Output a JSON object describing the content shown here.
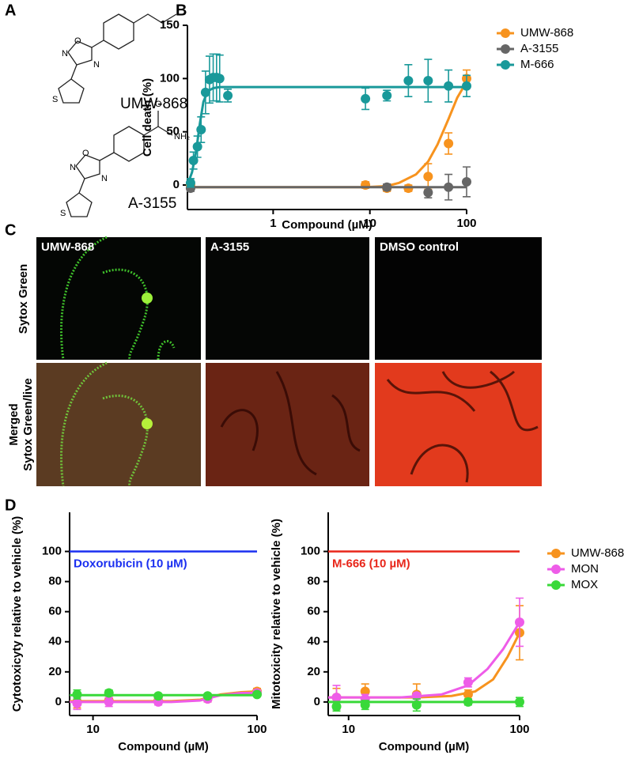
{
  "panels": [
    "A",
    "B",
    "C",
    "D"
  ],
  "structures": [
    {
      "name": "UMW-868",
      "atoms": [
        "O",
        "N",
        "N",
        "S"
      ]
    },
    {
      "name": "A-3155",
      "atoms": [
        "O",
        "N",
        "N",
        "S",
        "O",
        "NH₂"
      ]
    }
  ],
  "images": {
    "columns": [
      "UMW-868",
      "A-3155",
      "DMSO control"
    ],
    "rows": [
      {
        "lines": [
          "Sytox Green"
        ]
      },
      {
        "lines": [
          "Merged",
          "Sytox Green/live"
        ]
      }
    ]
  },
  "chart_data": [
    {
      "type": "scatter",
      "x_label": "Compound (µM)",
      "y_label": "Cell death (%)",
      "xscale": "log",
      "xlim": [
        0.13,
        100
      ],
      "ylim": [
        -23,
        150
      ],
      "xticks": [
        1,
        10,
        100
      ],
      "yticks": [
        0,
        50,
        100,
        150
      ],
      "legend": "right",
      "series": [
        {
          "name": "UMW-868",
          "color": "#f7931e",
          "x": [
            0.14,
            9,
            15,
            25,
            40,
            65,
            100
          ],
          "values": [
            0,
            0,
            -3,
            -3,
            8,
            39,
            100
          ],
          "errors": [
            3,
            3,
            3,
            3,
            12,
            10,
            8
          ],
          "fit_x": [
            0.13,
            0.34,
            9,
            15,
            20,
            30,
            40,
            50,
            65,
            80,
            100
          ],
          "fit_y": [
            -2,
            -2,
            -2,
            -1,
            2,
            10,
            22,
            38,
            62,
            82,
            97
          ]
        },
        {
          "name": "A-3155",
          "color": "#666666",
          "x": [
            0.14,
            15,
            40,
            65,
            100
          ],
          "values": [
            -3,
            -2,
            -7,
            -2,
            3
          ],
          "errors": [
            3,
            3,
            5,
            12,
            14
          ],
          "fit_x": [
            0.13,
            0.34,
            9,
            100
          ],
          "fit_y": [
            -2,
            -2,
            -2,
            -2
          ]
        },
        {
          "name": "M-666",
          "color": "#19999a",
          "x": [
            0.14,
            0.15,
            0.165,
            0.18,
            0.2,
            0.22,
            0.24,
            0.26,
            0.28,
            0.34,
            9,
            15,
            25,
            40,
            65,
            100
          ],
          "values": [
            2,
            23,
            36,
            52,
            87,
            99,
            101,
            101,
            100,
            84,
            81,
            84,
            98,
            98,
            93,
            93
          ],
          "errors": [
            4,
            8,
            10,
            12,
            20,
            22,
            22,
            22,
            22,
            6,
            10,
            5,
            15,
            20,
            15,
            10
          ],
          "fit_x": [
            0.13,
            0.145,
            0.16,
            0.175,
            0.19,
            0.21,
            0.24,
            0.28,
            0.34,
            9,
            100
          ],
          "fit_y": [
            0,
            12,
            32,
            58,
            78,
            88,
            91,
            92,
            92,
            92,
            92
          ]
        }
      ]
    },
    {
      "type": "scatter",
      "x_label": "Compound (µM)",
      "y_label": "Cytotoxicyty relative to vehicle (%)",
      "xscale": "log",
      "xlim": [
        7.2,
        100
      ],
      "ylim": [
        -9,
        126
      ],
      "xticks": [
        10,
        100
      ],
      "yticks": [
        0,
        20,
        40,
        60,
        80,
        100
      ],
      "reference": {
        "label": "Doxorubicin (10 µM)",
        "value": 100,
        "color": "#1a2ff0"
      },
      "series": [
        {
          "color": "#f7931e",
          "x": [
            8,
            12.5,
            25,
            50,
            100
          ],
          "values": [
            0,
            1,
            1,
            2,
            7
          ],
          "errors": [
            4,
            2,
            2,
            2,
            2
          ],
          "fit_x": [
            7.2,
            30,
            45,
            60,
            80,
            100
          ],
          "fit_y": [
            0.5,
            0.5,
            1.5,
            5,
            6.5,
            7
          ]
        },
        {
          "color": "#ee5ce8",
          "x": [
            8,
            12.5,
            25,
            50,
            100
          ],
          "values": [
            -1,
            0,
            0,
            2,
            6
          ],
          "errors": [
            4,
            3,
            2,
            2,
            2
          ],
          "fit_x": [
            7.2,
            30,
            45,
            60,
            80,
            100
          ],
          "fit_y": [
            0,
            0,
            1,
            4.5,
            6,
            6
          ]
        },
        {
          "color": "#39d939",
          "x": [
            8,
            12.5,
            25,
            50,
            100
          ],
          "values": [
            5,
            6,
            4,
            4,
            5
          ],
          "errors": [
            3,
            2,
            1,
            1,
            1
          ],
          "fit_x": [
            7.2,
            100
          ],
          "fit_y": [
            4.5,
            4.5
          ]
        }
      ]
    },
    {
      "type": "scatter",
      "x_label": "Compound (µM)",
      "y_label": "Mitotoxicity relative to vehicle (%)",
      "xscale": "log",
      "xlim": [
        7.6,
        100
      ],
      "ylim": [
        -9,
        126
      ],
      "xticks": [
        10,
        100
      ],
      "yticks": [
        0,
        20,
        40,
        60,
        80,
        100
      ],
      "legend": "right",
      "reference": {
        "label": "M-666 (10 µM)",
        "value": 100,
        "color": "#e8261a"
      },
      "series": [
        {
          "name": "UMW-868",
          "color": "#f7931e",
          "x": [
            8.5,
            12.5,
            25,
            50,
            100
          ],
          "values": [
            3,
            7,
            5,
            5,
            46
          ],
          "errors": [
            6,
            5,
            7,
            3,
            18
          ],
          "fit_x": [
            7.6,
            25,
            40,
            55,
            70,
            85,
            100
          ],
          "fit_y": [
            3,
            3,
            4,
            7,
            15,
            30,
            46
          ]
        },
        {
          "name": "MON",
          "color": "#ee5ce8",
          "x": [
            8.5,
            12.5,
            25,
            50,
            100
          ],
          "values": [
            3,
            2,
            4,
            13,
            53
          ],
          "errors": [
            8,
            3,
            2,
            3,
            16
          ],
          "fit_x": [
            7.6,
            20,
            35,
            50,
            65,
            80,
            100
          ],
          "fit_y": [
            3,
            3,
            5,
            11,
            22,
            35,
            53
          ]
        },
        {
          "name": "MOX",
          "color": "#39d939",
          "x": [
            8.5,
            12.5,
            25,
            50,
            100
          ],
          "values": [
            -3,
            -2,
            -2,
            0,
            0
          ],
          "errors": [
            3,
            3,
            4,
            2,
            3
          ],
          "fit_x": [
            7.6,
            100
          ],
          "fit_y": [
            0,
            0
          ]
        }
      ]
    }
  ]
}
